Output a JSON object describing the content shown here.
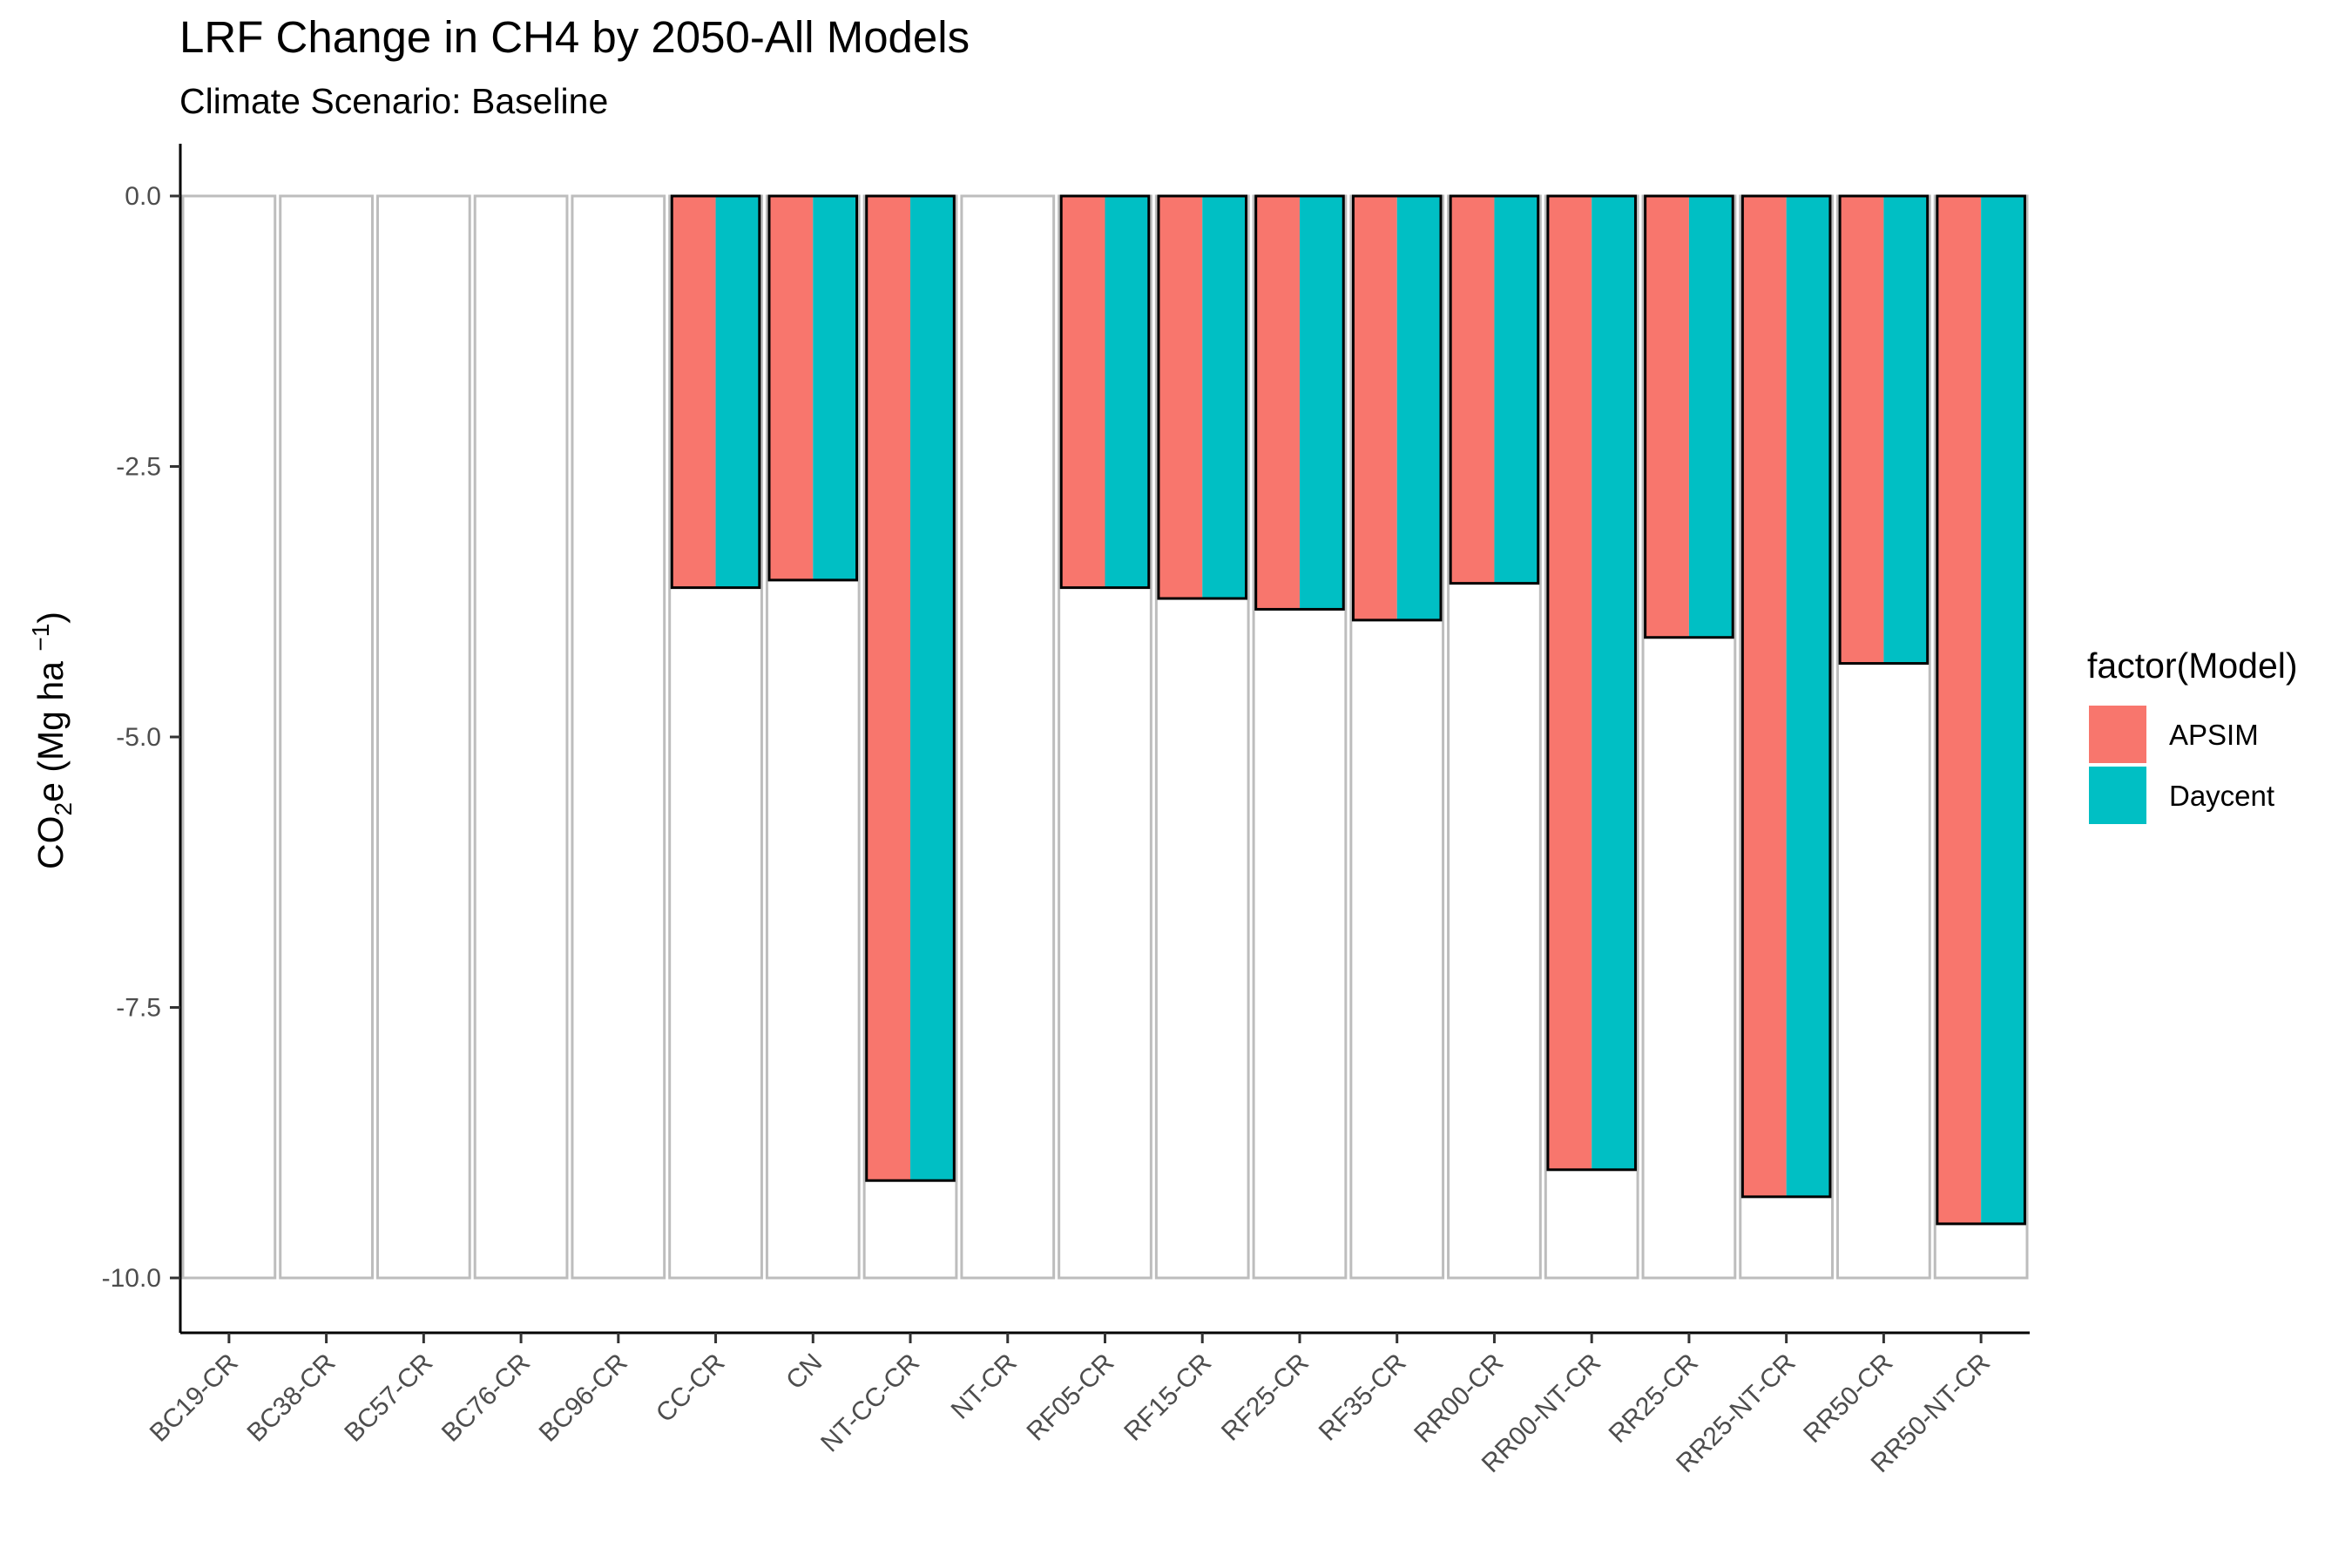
{
  "chart_data": {
    "type": "bar",
    "title": "LRF Change in CH4 by 2050-All Models",
    "subtitle": "Climate Scenario: Baseline",
    "xlabel": "",
    "ylabel": {
      "prefix": "CO",
      "sub": "2",
      "middle": "e (Mg ha ",
      "sup": "−1",
      "suffix": ")"
    },
    "ylim": [
      -10.5,
      0.5
    ],
    "yticks": [
      0,
      -2.5,
      -5,
      -7.5,
      -10
    ],
    "ytick_labels": [
      "0.0",
      "-2.5",
      "-5.0",
      "-7.5",
      "-10.0"
    ],
    "categories": [
      "BC19-CR",
      "BC38-CR",
      "BC57-CR",
      "BC76-CR",
      "BC96-CR",
      "CC-CR",
      "CN",
      "NT-CC-CR",
      "NT-CR",
      "RF05-CR",
      "RF15-CR",
      "RF25-CR",
      "RF35-CR",
      "RR00-CR",
      "RR00-NT-CR",
      "RR25-CR",
      "RR25-NT-CR",
      "RR50-CR",
      "RR50-NT-CR"
    ],
    "series": [
      {
        "name": "APSIM",
        "color": "#F8766D",
        "values": [
          0,
          0,
          0,
          0,
          0,
          -3.62,
          -3.55,
          -9.1,
          0,
          -3.62,
          -3.72,
          -3.82,
          -3.92,
          -3.58,
          -9.0,
          -4.08,
          -9.25,
          -4.32,
          -9.5
        ]
      },
      {
        "name": "Daycent",
        "color": "#00BFC4",
        "values": [
          0,
          0,
          0,
          0,
          0,
          -3.62,
          -3.55,
          -9.1,
          0,
          -3.62,
          -3.72,
          -3.82,
          -3.92,
          -3.58,
          -9.0,
          -4.08,
          -9.25,
          -4.32,
          -9.5
        ]
      }
    ],
    "legend": {
      "title": "factor(Model)",
      "position": "right"
    },
    "grid": false
  }
}
